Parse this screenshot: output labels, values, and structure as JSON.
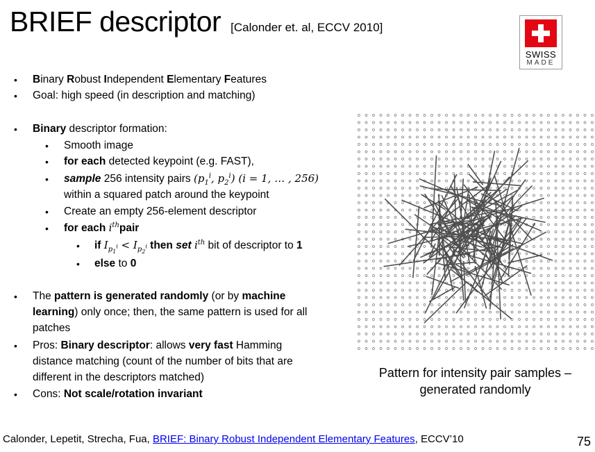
{
  "title": "BRIEF descriptor",
  "title_citation": "[Calonder et. al, ECCV 2010]",
  "badge": {
    "line1": "SWISS",
    "line2": "MADE",
    "flag_color": "#e30613"
  },
  "bullets": {
    "b1": {
      "l1": "inary ",
      "l2": "obust ",
      "l3": "ndependent ",
      "l4": "lementary ",
      "l5": "eatures"
    },
    "b1_initials": [
      "B",
      "R",
      "I",
      "E",
      "F"
    ],
    "b2": "Goal: high speed (in description and matching)",
    "b3_bold": "Binary",
    "b3_rest": " descriptor formation:",
    "s1": "Smooth image",
    "s2_bold": "for each",
    "s2_rest": " detected keypoint (e.g. FAST),",
    "s3_bold": "sample",
    "s3_rest": " 256 intensity pairs ",
    "s3_math": "(p",
    "s3_line2": "within a squared patch around the keypoint",
    "s4": "Create an empty 256-element descriptor",
    "s5_bold": "for each ",
    "s5_bold2": "pair",
    "ss1_bold": "if ",
    "ss1_bold2": " then ",
    "ss1_bi": "set",
    "ss1_rest": " bit of descriptor to ",
    "ss1_one": "1",
    "ss2_bold": "else",
    "ss2_rest": " to ",
    "ss2_zero": "0",
    "b4_l1a": "The ",
    "b4_l1b": "pattern is generated randomly",
    "b4_l1c": " (or by ",
    "b4_l1d": "machine",
    "b4_l2a": "learning",
    "b4_l2b": ") only once; then, the same pattern is used for all",
    "b4_l3": "patches",
    "b5_l1a": "Pros: ",
    "b5_l1b": "Binary descriptor",
    "b5_l1c": ": allows ",
    "b5_l1d": "very fast",
    "b5_l1e": " Hamming",
    "b5_l2": "distance matching (count of the number of bits that are",
    "b5_l3": "different in the descriptors matched)",
    "b6_a": "Cons: ",
    "b6_b": "Not scale/rotation invariant"
  },
  "figure_caption": {
    "line1": "Pattern for intensity pair samples –",
    "line2": "generated randomly"
  },
  "footer": {
    "authors": "Calonder, Lepetit, Strecha, Fua, ",
    "link": "BRIEF: Binary Robust Independent Elementary Features",
    "venue": ", ECCV’10"
  },
  "page_number": "75"
}
